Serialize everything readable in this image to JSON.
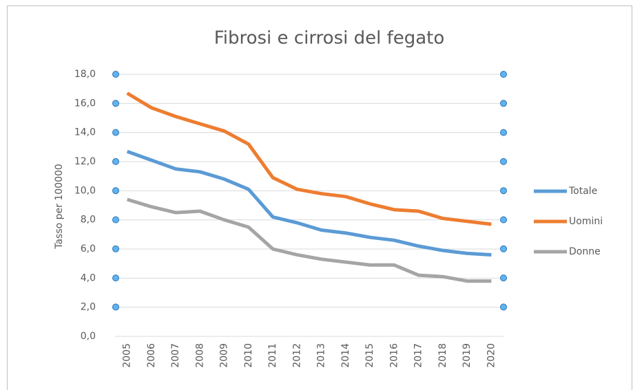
{
  "chart_data": {
    "type": "line",
    "title": "Fibrosi e cirrosi del fegato",
    "y_label": "Tasso per 100000",
    "categories": [
      "2005",
      "2006",
      "2007",
      "2008",
      "2009",
      "2010",
      "2011",
      "2012",
      "2013",
      "2014",
      "2015",
      "2016",
      "2017",
      "2018",
      "2019",
      "2020"
    ],
    "series": [
      {
        "name": "Totale",
        "color": "#5b9bd5",
        "values": [
          12.7,
          12.1,
          11.5,
          11.3,
          10.8,
          10.1,
          8.2,
          7.8,
          7.3,
          7.1,
          6.8,
          6.6,
          6.2,
          5.9,
          5.7,
          5.6
        ]
      },
      {
        "name": "Uomini",
        "color": "#ed7d31",
        "values": [
          16.7,
          15.7,
          15.1,
          14.6,
          14.1,
          13.2,
          10.9,
          10.1,
          9.8,
          9.6,
          9.1,
          8.7,
          8.6,
          8.1,
          7.9,
          7.7
        ]
      },
      {
        "name": "Donne",
        "color": "#a5a5a5",
        "values": [
          9.4,
          8.9,
          8.5,
          8.6,
          8.0,
          7.5,
          6.0,
          5.6,
          5.3,
          5.1,
          4.9,
          4.9,
          4.2,
          4.1,
          3.8,
          3.8
        ]
      }
    ],
    "ylim": [
      0,
      18
    ],
    "yticks": [
      {
        "value": 0,
        "label": "0,0"
      },
      {
        "value": 2,
        "label": "2,0"
      },
      {
        "value": 4,
        "label": "4,0"
      },
      {
        "value": 6,
        "label": "6,0"
      },
      {
        "value": 8,
        "label": "8,0"
      },
      {
        "value": 10,
        "label": "10,0"
      },
      {
        "value": 12,
        "label": "12,0"
      },
      {
        "value": 14,
        "label": "14,0"
      },
      {
        "value": 16,
        "label": "16,0"
      },
      {
        "value": 18,
        "label": "18,0"
      }
    ],
    "grid": true,
    "legend": "right"
  }
}
